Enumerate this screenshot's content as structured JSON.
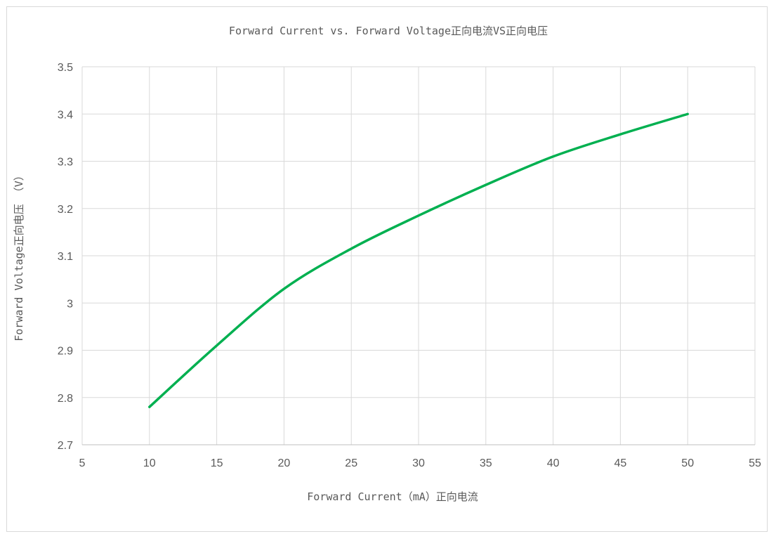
{
  "chart_data": {
    "type": "line",
    "title": "Forward Current vs. Forward Voltage正向电流VS正向电压",
    "xlabel": "Forward Current（mA）正向电流",
    "ylabel": "Forward Voltage正向电压 （V）",
    "xlim": [
      5,
      55
    ],
    "ylim": [
      2.7,
      3.5
    ],
    "x_ticks": [
      "5",
      "10",
      "15",
      "20",
      "25",
      "30",
      "35",
      "40",
      "45",
      "50",
      "55"
    ],
    "y_ticks": [
      "2.7",
      "2.8",
      "2.9",
      "3",
      "3.1",
      "3.2",
      "3.3",
      "3.4",
      "3.5"
    ],
    "grid": true,
    "legend": "none",
    "series": [
      {
        "color": "#00b050",
        "smooth": true,
        "points": [
          [
            10,
            2.78
          ],
          [
            15,
            2.91
          ],
          [
            20,
            3.03
          ],
          [
            25,
            3.115
          ],
          [
            30,
            3.185
          ],
          [
            35,
            3.25
          ],
          [
            40,
            3.31
          ],
          [
            45,
            3.357
          ],
          [
            50,
            3.4
          ]
        ]
      }
    ]
  }
}
